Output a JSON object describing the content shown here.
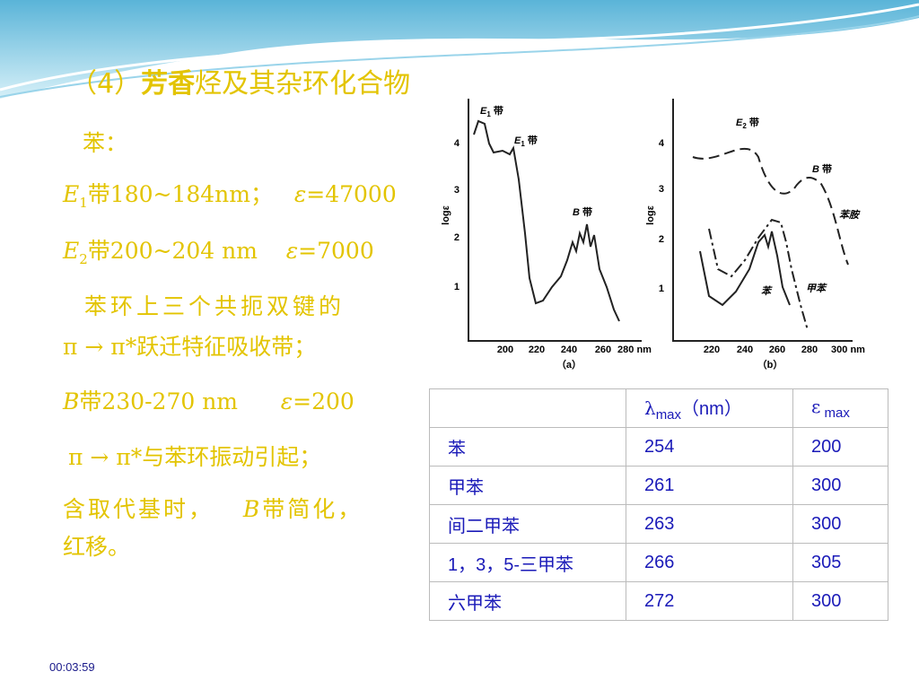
{
  "title": {
    "prefix": "（4）",
    "bold": "芳香",
    "rest": "烃及其杂环化合物"
  },
  "body": {
    "line1": "苯：",
    "e1": {
      "symbol": "E",
      "sub": "1",
      "band": "带180~184nm；",
      "eps": "ε",
      "value": "=47000"
    },
    "e2": {
      "symbol": "E",
      "sub": "2",
      "band": "带200~204 nm",
      "eps": "ε",
      "value": "=7000"
    },
    "line4": "苯环上三个共扼双键的",
    "line5": "π → π*跃迁特征吸收带；",
    "b": {
      "symbol": "B",
      "band": "带230-270 nm",
      "eps": "ε",
      "value": "=200"
    },
    "line7": "π → π*与苯环振动引起；",
    "line8": {
      "before": "含取代基时，",
      "symbol": "B",
      "after": "带简化，"
    },
    "line9": "红移。"
  },
  "figure": {
    "a": {
      "ylabel": "logε",
      "yticks": [
        "1",
        "2",
        "3",
        "4"
      ],
      "xticks": [
        "200",
        "220",
        "240",
        "260",
        "280 nm"
      ],
      "caption": "（a）",
      "labels": [
        {
          "main": "E",
          "sub": "1",
          "rest": " 带"
        },
        {
          "main": "E",
          "sub": "1",
          "rest": " 带"
        },
        {
          "main": "B",
          "rest": " 带"
        }
      ]
    },
    "b": {
      "ylabel": "logε",
      "yticks": [
        "1",
        "2",
        "3",
        "4"
      ],
      "xticks": [
        "220",
        "240",
        "260",
        "280",
        "300 nm"
      ],
      "caption": "（b）",
      "labels": [
        {
          "main": "E",
          "sub": "2",
          "rest": " 带"
        },
        {
          "main": "B",
          "rest": " 带"
        },
        {
          "main": "苯胺"
        },
        {
          "main": "甲苯"
        },
        {
          "main": "苯"
        }
      ]
    }
  },
  "table": {
    "header": [
      {
        "symbol": "λ",
        "sub": "max",
        "unit": "（nm）"
      },
      {
        "symbol": "ε",
        "sub": " max"
      }
    ],
    "rows": [
      [
        "苯",
        254,
        200
      ],
      [
        "甲苯",
        261,
        300
      ],
      [
        "间二甲苯",
        263,
        300
      ],
      [
        "1，3，5-三甲苯",
        266,
        305
      ],
      [
        "六甲苯",
        272,
        300
      ]
    ]
  },
  "timestamp": "00:03:59"
}
